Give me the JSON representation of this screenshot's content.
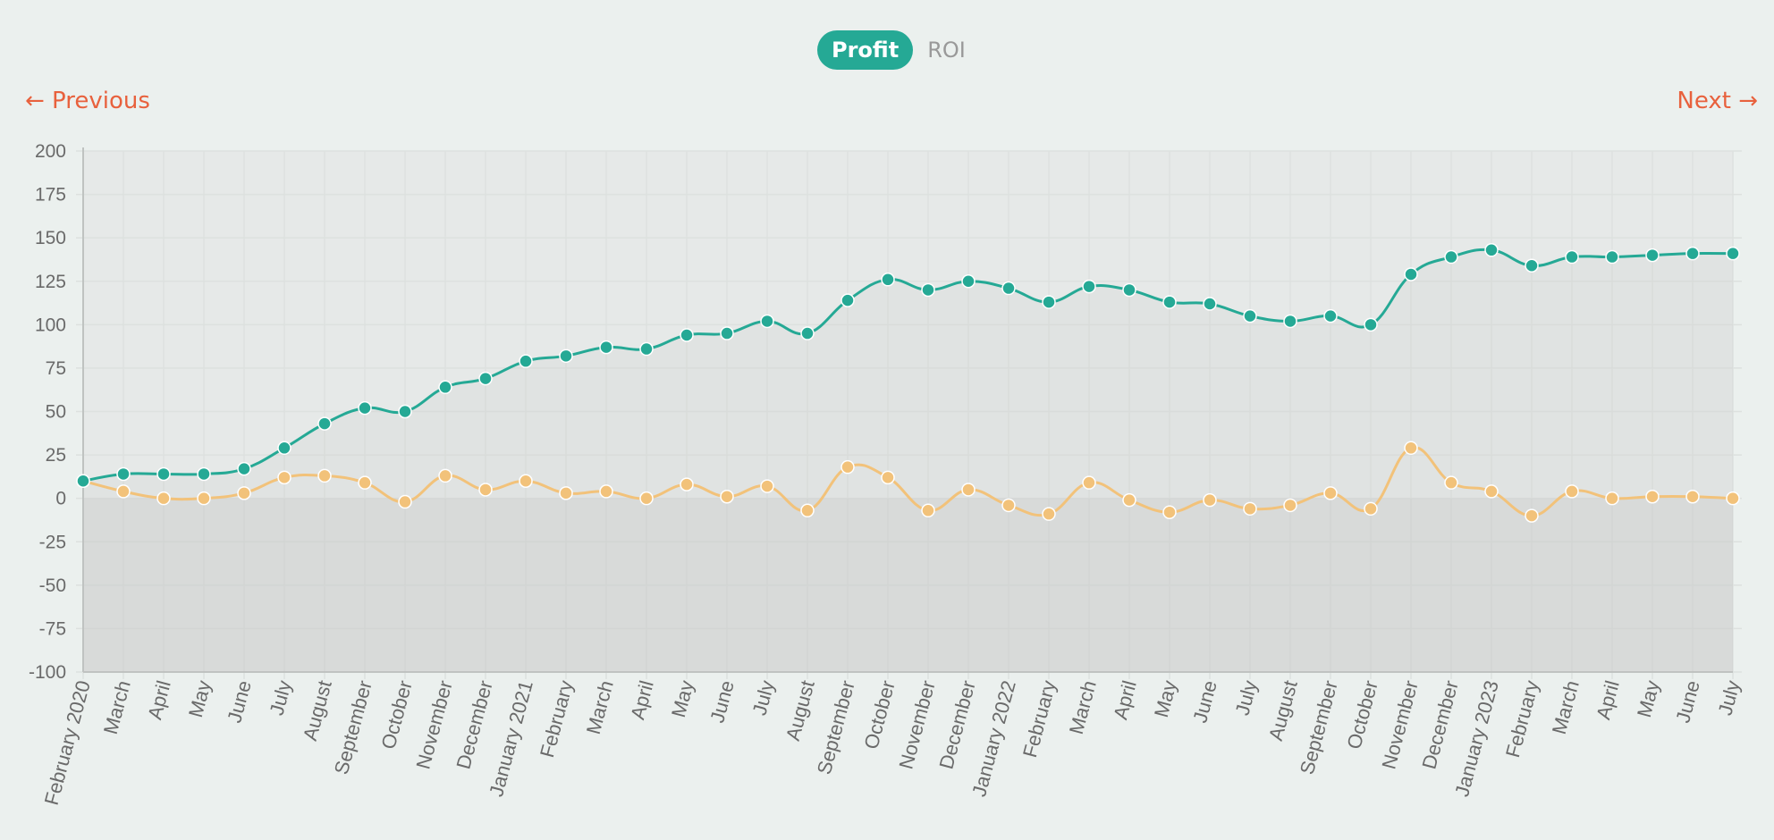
{
  "toggle": {
    "active": "Profit",
    "inactive": "ROI"
  },
  "nav": {
    "previous": "← Previous",
    "next": "Next →"
  },
  "colors": {
    "profit": "#25a995",
    "roi": "#f2c27a",
    "accent": "#e8613d",
    "background": "#ebf0ee"
  },
  "chart_data": {
    "type": "line",
    "categories": [
      "February 2020",
      "March",
      "April",
      "May",
      "June",
      "July",
      "August",
      "September",
      "October",
      "November",
      "December",
      "January 2021",
      "February",
      "March",
      "April",
      "May",
      "June",
      "July",
      "August",
      "September",
      "October",
      "November",
      "December",
      "January 2022",
      "February",
      "March",
      "April",
      "May",
      "June",
      "July",
      "August",
      "September",
      "October",
      "November",
      "December",
      "January 2023",
      "February",
      "March",
      "April",
      "May",
      "June",
      "July"
    ],
    "series": [
      {
        "values": [
          10,
          14,
          14,
          14,
          17,
          29,
          43,
          52,
          50,
          64,
          69,
          79,
          82,
          87,
          86,
          94,
          95,
          102,
          95,
          114,
          126,
          120,
          125,
          121,
          113,
          122,
          120,
          113,
          112,
          105,
          102,
          105,
          100,
          129,
          139,
          143,
          134,
          139,
          139,
          140,
          141,
          141
        ]
      },
      {
        "values": [
          10,
          4,
          0,
          0,
          3,
          12,
          13,
          9,
          -2,
          13,
          5,
          10,
          3,
          4,
          0,
          8,
          1,
          7,
          -7,
          18,
          12,
          -7,
          5,
          -4,
          -9,
          9,
          -1,
          -8,
          -1,
          -6,
          -4,
          3,
          -6,
          29,
          9,
          4,
          -10,
          4,
          0,
          1,
          1,
          0
        ]
      }
    ],
    "yticks": [
      200,
      175,
      150,
      125,
      100,
      75,
      50,
      25,
      0,
      -25,
      -50,
      -75,
      -100
    ],
    "ylim": [
      -100,
      200
    ],
    "grid": true
  }
}
